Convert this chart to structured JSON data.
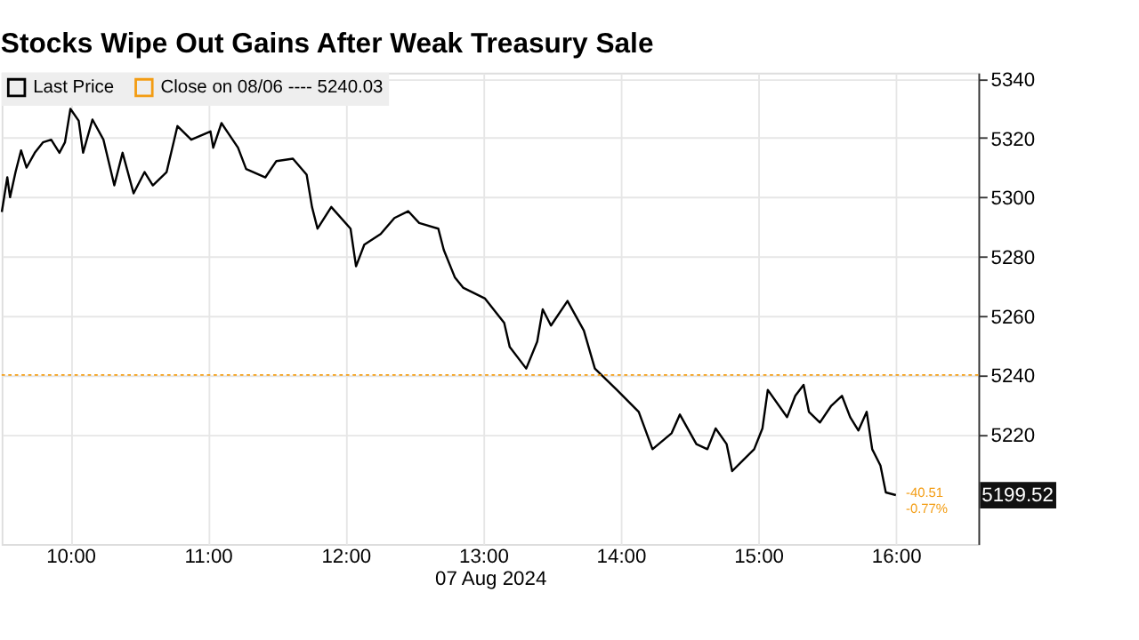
{
  "chart_data": {
    "type": "line",
    "title": "Stocks Wipe Out Gains After Weak Treasury Sale",
    "xlabel": "07 Aug 2024",
    "series": [
      {
        "name": "Last Price",
        "color": "#000000",
        "x": [
          9.501,
          9.541,
          9.561,
          9.601,
          9.641,
          9.681,
          9.741,
          9.8,
          9.86,
          9.92,
          9.96,
          10.0,
          10.06,
          10.092,
          10.16,
          10.24,
          10.319,
          10.379,
          10.459,
          10.539,
          10.599,
          10.699,
          10.778,
          10.878,
          11.018,
          11.038,
          11.098,
          11.218,
          11.277,
          11.417,
          11.497,
          11.617,
          11.717,
          11.756,
          11.796,
          11.896,
          12.036,
          12.076,
          12.136,
          12.255,
          12.355,
          12.455,
          12.535,
          12.674,
          12.714,
          12.794,
          12.854,
          13.014,
          13.153,
          13.193,
          13.313,
          13.393,
          13.433,
          13.493,
          13.613,
          13.732,
          13.812,
          13.972,
          14.131,
          14.231,
          14.37,
          14.43,
          14.55,
          14.63,
          14.69,
          14.77,
          14.81,
          14.89,
          14.97,
          15.03,
          15.069,
          15.209,
          15.269,
          15.329,
          15.368,
          15.448,
          15.528,
          15.608,
          15.668,
          15.728,
          15.788,
          15.828,
          15.888,
          15.927,
          16.0
        ],
        "values": [
          5295,
          5306.7,
          5300,
          5308.5,
          5315.8,
          5310,
          5315,
          5318.5,
          5319.4,
          5315,
          5318.5,
          5329.8,
          5325.8,
          5315,
          5326.2,
          5319.4,
          5304,
          5315,
          5301.3,
          5308.5,
          5304,
          5308.5,
          5324,
          5319.4,
          5322.2,
          5316.7,
          5325,
          5316.7,
          5309.5,
          5306.7,
          5312.2,
          5313,
          5307.6,
          5296.7,
          5289.4,
          5296.7,
          5289.4,
          5276.7,
          5284,
          5287.6,
          5293,
          5295.3,
          5291.3,
          5289.4,
          5282.2,
          5273,
          5269.5,
          5265.8,
          5257.6,
          5249.5,
          5242.2,
          5251.3,
          5262.2,
          5256.7,
          5265,
          5255,
          5242.2,
          5235,
          5227.6,
          5215,
          5220.4,
          5226.7,
          5216.7,
          5215,
          5222,
          5216.7,
          5207.6,
          5211.3,
          5215,
          5222,
          5235,
          5225.8,
          5233,
          5236.7,
          5227.6,
          5224,
          5229.5,
          5233,
          5225.8,
          5221.3,
          5227.6,
          5215,
          5209.5,
          5200.4,
          5199.5
        ]
      }
    ],
    "ref_lines": [
      {
        "axis": "y",
        "value": 5240.03,
        "label": "Close on 08/06 ---- 5240.03",
        "color": "#f39c12",
        "line_style": "dotted"
      }
    ],
    "annotations": [
      "-40.51",
      "-0.77%",
      "5199.52"
    ],
    "xlim": [
      9.5,
      16.6
    ],
    "ylim": [
      5183,
      5342
    ],
    "xticks": [
      {
        "value": 10,
        "label": "10:00"
      },
      {
        "value": 11,
        "label": "11:00"
      },
      {
        "value": 12,
        "label": "12:00"
      },
      {
        "value": 13,
        "label": "13:00"
      },
      {
        "value": 14,
        "label": "14:00"
      },
      {
        "value": 15,
        "label": "15:00"
      },
      {
        "value": 16,
        "label": "16:00"
      }
    ],
    "yticks": [
      5220,
      5240,
      5260,
      5280,
      5300,
      5320,
      5340
    ],
    "grid": true,
    "legend": "top left",
    "line_style": "solid",
    "marker": "none"
  }
}
